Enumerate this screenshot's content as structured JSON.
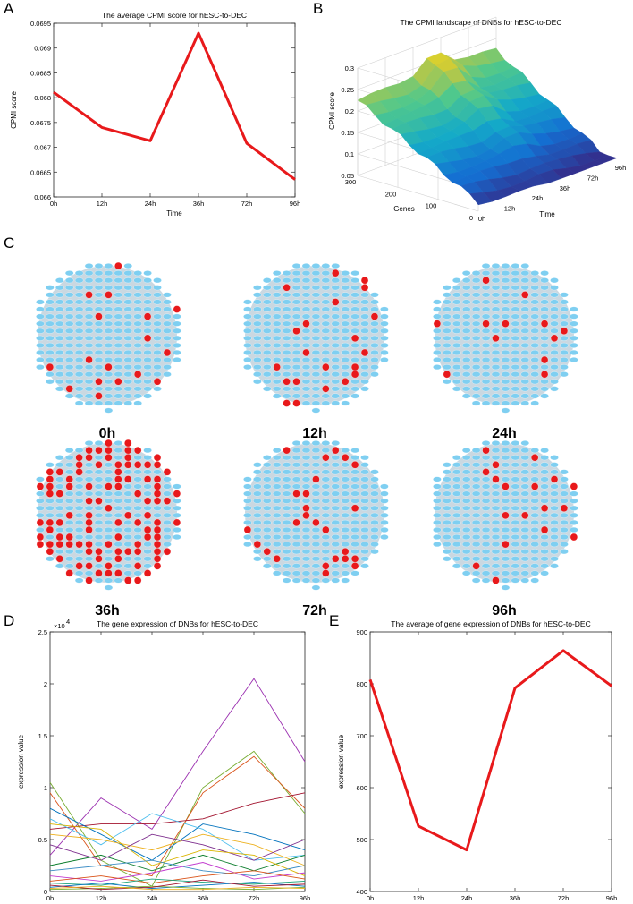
{
  "panels": {
    "A": "A",
    "B": "B",
    "C": "C",
    "D": "D",
    "E": "E"
  },
  "network_labels": [
    "0h",
    "12h",
    "24h",
    "36h",
    "72h",
    "96h"
  ],
  "colors": {
    "line_red": "#e8191b",
    "node_blue": "#7fcff1",
    "node_red": "#e8191b",
    "net_bg": "#9fb8c8"
  },
  "chart_data": [
    {
      "id": "A",
      "type": "line",
      "title": "The average CPMI score for hESC-to-DEC",
      "xlabel": "Time",
      "ylabel": "CPMI score",
      "categories": [
        "0h",
        "12h",
        "24h",
        "36h",
        "72h",
        "96h"
      ],
      "values": [
        0.06811,
        0.0674,
        0.06713,
        0.0693,
        0.06708,
        0.06635
      ],
      "ylim": [
        0.066,
        0.0695
      ],
      "yticks": [
        "0.066",
        "0.0665",
        "0.067",
        "0.0675",
        "0.068",
        "0.0685",
        "0.069",
        "0.0695"
      ],
      "grid": false
    },
    {
      "id": "B",
      "type": "area",
      "title": "The CPMI landscape of DNBs for hESC-to-DEC",
      "xlabel": "Time",
      "ylabel": "Genes",
      "zlabel": "CPMI score",
      "time_ticks": [
        "0h",
        "12h",
        "24h",
        "36h",
        "72h",
        "96h"
      ],
      "gene_ticks": [
        "0",
        "100",
        "200",
        "300"
      ],
      "zticks": [
        "0.05",
        "0.1",
        "0.15",
        "0.2",
        "0.25",
        "0.3"
      ],
      "zlim": [
        0.05,
        0.3
      ]
    },
    {
      "id": "D",
      "type": "line",
      "title": "The gene expression of DNBs for hESC-to-DEC",
      "ylabel": "expression value",
      "categories": [
        "0h",
        "12h",
        "24h",
        "36h",
        "72h",
        "96h"
      ],
      "ylim": [
        0,
        25000
      ],
      "yticks": [
        "0",
        "0.5",
        "1",
        "1.5",
        "2",
        "2.5"
      ],
      "yscale_label": "×10",
      "yscale_exp": "4",
      "series": [
        {
          "values": [
            3500,
            9000,
            6000,
            13500,
            20500,
            12500
          ],
          "color": "#9b30b0"
        },
        {
          "values": [
            10500,
            3000,
            500,
            10000,
            13500,
            7500
          ],
          "color": "#77ac30"
        },
        {
          "values": [
            9500,
            2500,
            1500,
            9500,
            13000,
            8000
          ],
          "color": "#d95319"
        },
        {
          "values": [
            6000,
            6500,
            6500,
            7000,
            8500,
            9500
          ],
          "color": "#a2142f"
        },
        {
          "values": [
            8000,
            5500,
            3000,
            6500,
            5500,
            4000
          ],
          "color": "#0072bd"
        },
        {
          "values": [
            7000,
            4500,
            7500,
            6000,
            3000,
            3500
          ],
          "color": "#4dbeee"
        },
        {
          "values": [
            5500,
            5000,
            4000,
            5500,
            4500,
            2500
          ],
          "color": "#edb120"
        },
        {
          "values": [
            4500,
            3000,
            5500,
            4500,
            3000,
            5000
          ],
          "color": "#7e2f8e"
        },
        {
          "values": [
            2500,
            3500,
            2000,
            3500,
            2000,
            3500
          ],
          "color": "#0e7f2f"
        },
        {
          "values": [
            6500,
            6000,
            2500,
            4000,
            3500,
            1500
          ],
          "color": "#d9b400"
        },
        {
          "values": [
            2000,
            2500,
            3000,
            2000,
            1500,
            2500
          ],
          "color": "#3c8dc5"
        },
        {
          "values": [
            1500,
            1000,
            1800,
            2800,
            1200,
            1800
          ],
          "color": "#c23ccf"
        },
        {
          "values": [
            1000,
            1500,
            800,
            1500,
            2000,
            1200
          ],
          "color": "#d95319"
        },
        {
          "values": [
            800,
            600,
            1200,
            900,
            700,
            1000
          ],
          "color": "#1aa37a"
        },
        {
          "values": [
            400,
            800,
            300,
            600,
            900,
            500
          ],
          "color": "#0072bd"
        },
        {
          "values": [
            200,
            300,
            500,
            300,
            200,
            400
          ],
          "color": "#77ac30"
        },
        {
          "values": [
            600,
            200,
            400,
            1100,
            500,
            700
          ],
          "color": "#a2142f"
        },
        {
          "values": [
            300,
            500,
            200,
            200,
            400,
            300
          ],
          "color": "#edb120"
        }
      ]
    },
    {
      "id": "E",
      "type": "line",
      "title": "The average of gene expression of DNBs for hESC-to-DEC",
      "ylabel": "expression value",
      "categories": [
        "0h",
        "12h",
        "24h",
        "36h",
        "72h",
        "96h"
      ],
      "values": [
        808,
        526,
        480,
        792,
        864,
        796
      ],
      "ylim": [
        400,
        900
      ],
      "yticks": [
        "400",
        "500",
        "600",
        "700",
        "800",
        "900"
      ],
      "grid": false
    }
  ]
}
